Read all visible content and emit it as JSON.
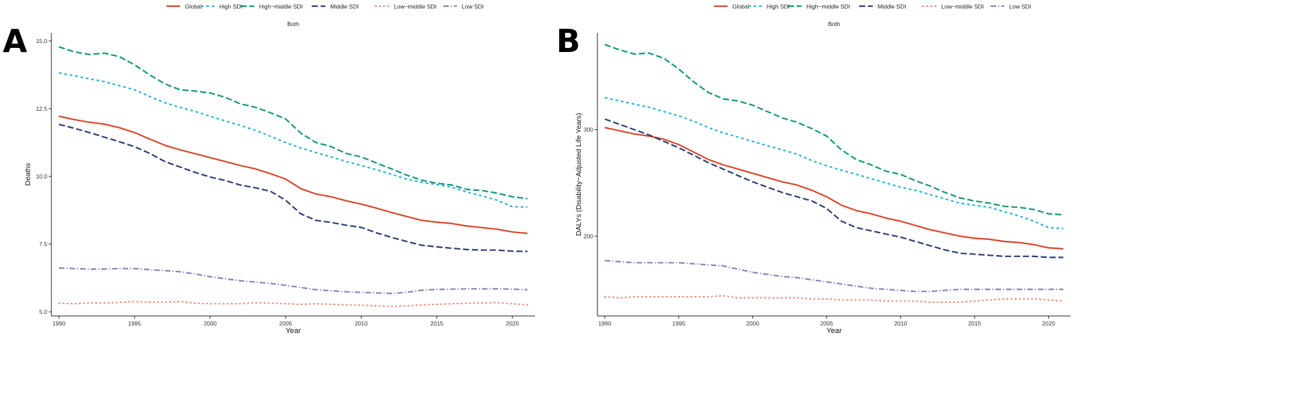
{
  "chart_data": [
    {
      "type": "line",
      "panel_label": "A",
      "title": "Both",
      "xlabel": "Year",
      "ylabel": "Deaths",
      "xlim": [
        1989.5,
        2021.5
      ],
      "ylim": [
        4.85,
        15.3
      ],
      "xticks": [
        1990,
        1995,
        2000,
        2005,
        2010,
        2015,
        2020
      ],
      "yticks": [
        5.0,
        7.5,
        10.0,
        12.5,
        15.0
      ],
      "ytick_labels": [
        "5.0",
        "7.5",
        "10.0",
        "12.5",
        "15.0"
      ],
      "grid": false,
      "legend_position": "top",
      "x": [
        1990,
        1991,
        1992,
        1993,
        1994,
        1995,
        1996,
        1997,
        1998,
        1999,
        2000,
        2001,
        2002,
        2003,
        2004,
        2005,
        2006,
        2007,
        2008,
        2009,
        2010,
        2011,
        2012,
        2013,
        2014,
        2015,
        2016,
        2017,
        2018,
        2019,
        2020,
        2021
      ],
      "series": [
        {
          "name": "Global",
          "color": "#d9472b",
          "dash": "solid",
          "values": [
            12.22,
            12.1,
            12.0,
            11.93,
            11.8,
            11.62,
            11.38,
            11.15,
            10.98,
            10.84,
            10.69,
            10.55,
            10.4,
            10.28,
            10.1,
            9.9,
            9.55,
            9.35,
            9.25,
            9.1,
            8.98,
            8.83,
            8.67,
            8.52,
            8.38,
            8.31,
            8.26,
            8.17,
            8.11,
            8.05,
            7.95,
            7.9
          ]
        },
        {
          "name": "High SDI",
          "color": "#2bb5cf",
          "dash": "4,4",
          "values": [
            13.82,
            13.72,
            13.6,
            13.5,
            13.35,
            13.2,
            12.95,
            12.72,
            12.55,
            12.4,
            12.22,
            12.05,
            11.88,
            11.7,
            11.48,
            11.25,
            11.05,
            10.88,
            10.72,
            10.55,
            10.4,
            10.25,
            10.08,
            9.9,
            9.78,
            9.7,
            9.6,
            9.42,
            9.28,
            9.12,
            8.88,
            8.87
          ]
        },
        {
          "name": "High−middle SDI",
          "color": "#12977b",
          "dash": "9,4",
          "values": [
            14.78,
            14.6,
            14.5,
            14.55,
            14.42,
            14.12,
            13.75,
            13.42,
            13.2,
            13.15,
            13.08,
            12.92,
            12.68,
            12.55,
            12.35,
            12.12,
            11.6,
            11.25,
            11.1,
            10.85,
            10.72,
            10.5,
            10.28,
            10.05,
            9.86,
            9.75,
            9.68,
            9.52,
            9.48,
            9.38,
            9.25,
            9.18
          ]
        },
        {
          "name": "Middle SDI",
          "color": "#2d3e72",
          "dash": "9,4",
          "values": [
            11.92,
            11.78,
            11.62,
            11.45,
            11.28,
            11.1,
            10.85,
            10.55,
            10.35,
            10.15,
            9.98,
            9.85,
            9.68,
            9.58,
            9.45,
            9.12,
            8.62,
            8.38,
            8.3,
            8.2,
            8.12,
            7.92,
            7.75,
            7.6,
            7.46,
            7.4,
            7.35,
            7.3,
            7.28,
            7.28,
            7.24,
            7.23
          ]
        },
        {
          "name": "Low−middle SDI",
          "color": "#e8907c",
          "dash": "1,5",
          "values": [
            5.32,
            5.3,
            5.33,
            5.33,
            5.35,
            5.38,
            5.36,
            5.36,
            5.38,
            5.32,
            5.3,
            5.3,
            5.3,
            5.34,
            5.32,
            5.3,
            5.28,
            5.3,
            5.28,
            5.26,
            5.25,
            5.22,
            5.2,
            5.22,
            5.26,
            5.28,
            5.3,
            5.32,
            5.33,
            5.34,
            5.3,
            5.26
          ]
        },
        {
          "name": "Low SDI",
          "color": "#8b83b5",
          "dash": "8,3,1.5,3",
          "values": [
            6.62,
            6.6,
            6.58,
            6.58,
            6.6,
            6.6,
            6.56,
            6.52,
            6.48,
            6.4,
            6.3,
            6.22,
            6.15,
            6.1,
            6.05,
            5.98,
            5.9,
            5.82,
            5.78,
            5.74,
            5.72,
            5.7,
            5.68,
            5.72,
            5.8,
            5.83,
            5.84,
            5.85,
            5.85,
            5.85,
            5.84,
            5.82
          ]
        }
      ]
    },
    {
      "type": "line",
      "panel_label": "B",
      "title": "Both",
      "xlabel": "Year",
      "ylabel": "DALYs (Disability−Adjusted Life Years)",
      "xlim": [
        1989.5,
        2021.5
      ],
      "ylim": [
        125,
        391
      ],
      "xticks": [
        1990,
        1995,
        2000,
        2005,
        2010,
        2015,
        2020
      ],
      "yticks": [
        200,
        300
      ],
      "ytick_labels": [
        "200",
        "300"
      ],
      "grid": false,
      "legend_position": "top",
      "x": [
        1990,
        1991,
        1992,
        1993,
        1994,
        1995,
        1996,
        1997,
        1998,
        1999,
        2000,
        2001,
        2002,
        2003,
        2004,
        2005,
        2006,
        2007,
        2008,
        2009,
        2010,
        2011,
        2012,
        2013,
        2014,
        2015,
        2016,
        2017,
        2018,
        2019,
        2020,
        2021
      ],
      "series": [
        {
          "name": "Global",
          "color": "#d9472b",
          "dash": "solid",
          "values": [
            302,
            299,
            296,
            294,
            291,
            286,
            279,
            272,
            267,
            263,
            259,
            255,
            251,
            248,
            243,
            237,
            229,
            224,
            221,
            217,
            214,
            210,
            206,
            203,
            200,
            198,
            197,
            195,
            194,
            192,
            189,
            188
          ]
        },
        {
          "name": "High SDI",
          "color": "#2bb5cf",
          "dash": "4,4",
          "values": [
            330,
            327,
            324,
            321,
            317,
            313,
            308,
            302,
            297,
            293,
            289,
            285,
            281,
            277,
            271,
            266,
            262,
            258,
            254,
            250,
            246,
            243,
            239,
            235,
            231,
            229,
            227,
            223,
            219,
            214,
            208,
            207
          ]
        },
        {
          "name": "High−middle SDI",
          "color": "#12977b",
          "dash": "9,4",
          "values": [
            380,
            375,
            371,
            372,
            367,
            357,
            345,
            335,
            329,
            327,
            323,
            317,
            311,
            307,
            301,
            294,
            281,
            272,
            267,
            261,
            258,
            252,
            247,
            241,
            236,
            233,
            231,
            228,
            227,
            225,
            221,
            220
          ]
        },
        {
          "name": "Middle SDI",
          "color": "#2d3e72",
          "dash": "9,4",
          "values": [
            310,
            305,
            300,
            295,
            289,
            283,
            276,
            269,
            263,
            257,
            251,
            246,
            241,
            237,
            233,
            226,
            214,
            208,
            205,
            202,
            199,
            195,
            191,
            187,
            184,
            183,
            182,
            181,
            181,
            181,
            180,
            180
          ]
        },
        {
          "name": "Low−middle SDI",
          "color": "#e8907c",
          "dash": "1,5",
          "values": [
            143,
            142,
            143,
            143,
            143,
            143,
            143,
            143,
            144,
            142,
            142,
            142,
            142,
            142,
            141,
            141,
            140,
            140,
            140,
            139,
            139,
            139,
            138,
            138,
            138,
            139,
            140,
            141,
            141,
            141,
            140,
            139
          ]
        },
        {
          "name": "Low SDI",
          "color": "#8b83b5",
          "dash": "8,3,1.5,3",
          "values": [
            177,
            176,
            175,
            175,
            175,
            175,
            174,
            173,
            172,
            169,
            166,
            164,
            162,
            161,
            159,
            157,
            155,
            153,
            151,
            150,
            149,
            148,
            148,
            149,
            150,
            150,
            150,
            150,
            150,
            150,
            150,
            150
          ]
        }
      ]
    }
  ]
}
